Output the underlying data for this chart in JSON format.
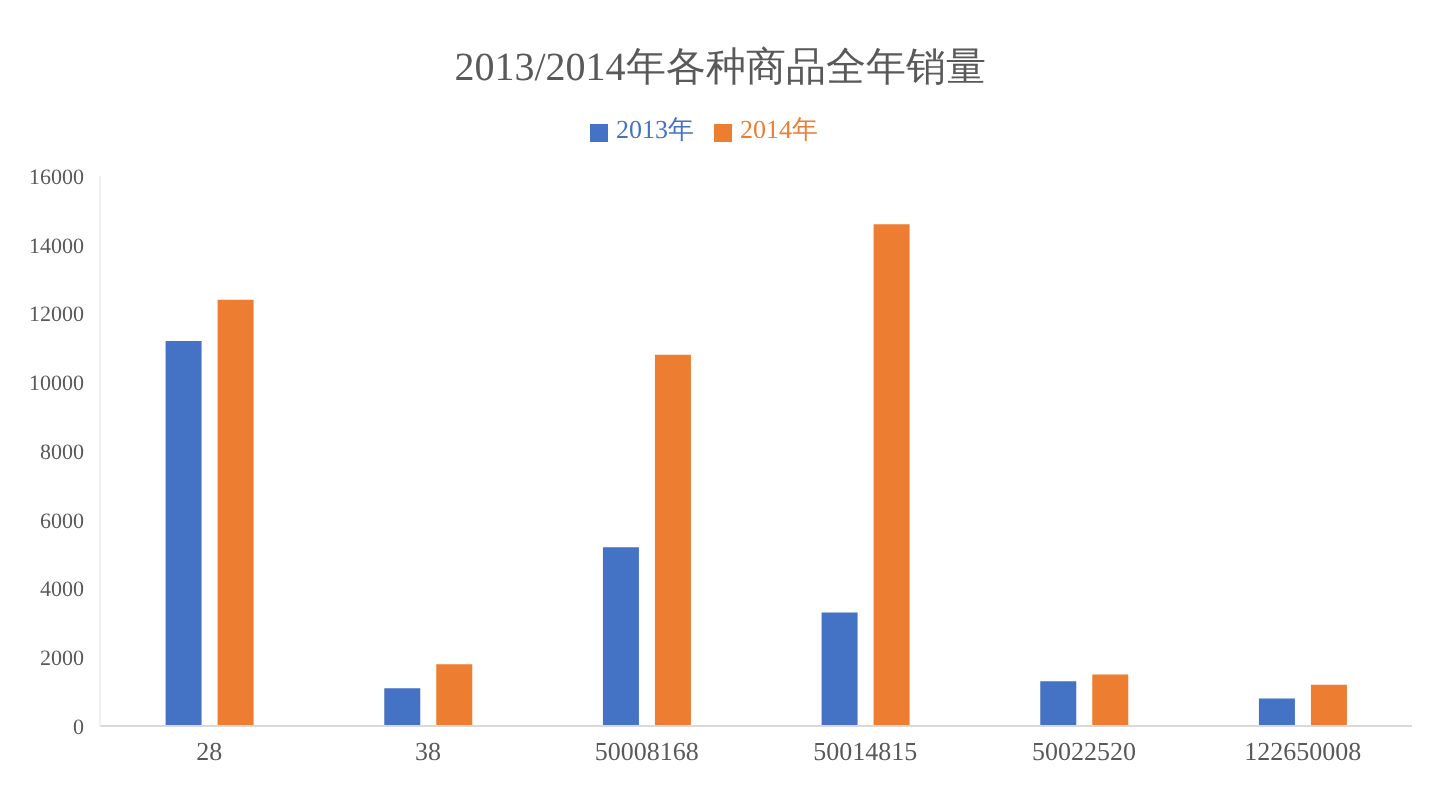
{
  "chart_data": {
    "type": "bar",
    "title": "2013/2014年各种商品全年销量",
    "categories": [
      "28",
      "38",
      "50008168",
      "50014815",
      "50022520",
      "122650008"
    ],
    "series": [
      {
        "name": "2013年",
        "color": "#4472c4",
        "values": [
          11200,
          1100,
          5200,
          3300,
          1300,
          800
        ]
      },
      {
        "name": "2014年",
        "color": "#ed7d31",
        "values": [
          12400,
          1800,
          10800,
          14600,
          1500,
          1200
        ]
      }
    ],
    "ylim": [
      0,
      16000
    ],
    "yticks": [
      0,
      2000,
      4000,
      6000,
      8000,
      10000,
      12000,
      14000,
      16000
    ],
    "grid": false,
    "legend": "top"
  }
}
